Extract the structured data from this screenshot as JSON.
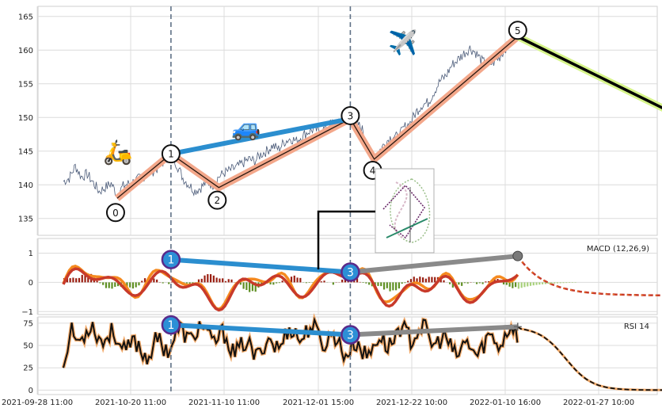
{
  "chart_data": [
    {
      "panel": "price",
      "type": "line",
      "x_ticks": [
        "2021-09-28 11:00",
        "2021-10-20 11:00",
        "2021-11-10 11:00",
        "2021-12-01 15:00",
        "2021-12-22 10:00",
        "2022-01-10 16:00",
        "2022-01-27 10:00"
      ],
      "y_ticks": [
        135,
        140,
        145,
        150,
        155,
        160,
        165
      ],
      "ylim": [
        132.5,
        166.5
      ],
      "grid": true,
      "price_points": [
        [
          0,
          140.5
        ],
        [
          1,
          141.0
        ],
        [
          2,
          142.8
        ],
        [
          3,
          141.2
        ],
        [
          4,
          141.6
        ],
        [
          6,
          139.0
        ],
        [
          8,
          140.2
        ],
        [
          9,
          138.5
        ],
        [
          10,
          139.8
        ],
        [
          12,
          140.6
        ],
        [
          14,
          141.5
        ],
        [
          16,
          142.6
        ],
        [
          17,
          143.8
        ],
        [
          18,
          144.6
        ],
        [
          19,
          143.0
        ],
        [
          20,
          141.0
        ],
        [
          21,
          140.0
        ],
        [
          22,
          139.1
        ],
        [
          23,
          139.6
        ],
        [
          24,
          140.4
        ],
        [
          25,
          140.0
        ],
        [
          26,
          141.2
        ],
        [
          27,
          141.8
        ],
        [
          28,
          142.2
        ],
        [
          29,
          142.6
        ],
        [
          30,
          143.2
        ],
        [
          31,
          143.8
        ],
        [
          32,
          143.5
        ],
        [
          33,
          144.5
        ],
        [
          34,
          145.0
        ],
        [
          35,
          145.8
        ],
        [
          36,
          145.3
        ],
        [
          37,
          146.4
        ],
        [
          38,
          146.9
        ],
        [
          39,
          146.5
        ],
        [
          40,
          147.3
        ],
        [
          41,
          147.9
        ],
        [
          42,
          148.3
        ],
        [
          43,
          147.8
        ],
        [
          44,
          148.6
        ],
        [
          45,
          149.2
        ],
        [
          46,
          149.0
        ],
        [
          47,
          149.8
        ],
        [
          48,
          150.3
        ],
        [
          49,
          149.3
        ],
        [
          50,
          148.2
        ],
        [
          51,
          145.5
        ],
        [
          52,
          144.0
        ],
        [
          53,
          145.2
        ],
        [
          54,
          146.4
        ],
        [
          55,
          147.3
        ],
        [
          56,
          147.0
        ],
        [
          57,
          148.5
        ],
        [
          58,
          149.2
        ],
        [
          59,
          150.8
        ],
        [
          60,
          151.9
        ],
        [
          61,
          152.2
        ],
        [
          62,
          153.8
        ],
        [
          63,
          155.4
        ],
        [
          64,
          156.2
        ],
        [
          65,
          157.8
        ],
        [
          66,
          158.6
        ],
        [
          67,
          159.5
        ],
        [
          68,
          160.3
        ],
        [
          69,
          159.6
        ],
        [
          70,
          158.4
        ],
        [
          71,
          157.8
        ],
        [
          72,
          158.2
        ],
        [
          73,
          159.0
        ],
        [
          74,
          160.4
        ],
        [
          75,
          161.2
        ],
        [
          76,
          162.0
        ]
      ],
      "zigzag_points": [
        [
          9,
          138.0
        ],
        [
          18,
          144.6
        ],
        [
          26,
          139.6
        ],
        [
          48,
          149.8
        ],
        [
          52,
          143.8
        ],
        [
          76,
          162.0
        ]
      ],
      "zigzag_labels": [
        "0",
        "1",
        "2",
        "3",
        "4",
        "5"
      ],
      "projection": {
        "from": [
          76,
          162.0
        ],
        "to": [
          103,
          150.2
        ]
      },
      "trend_line": {
        "from": [
          18,
          144.6
        ],
        "to": [
          48,
          149.8
        ]
      },
      "vertical_markers": [
        18,
        48
      ],
      "icons": [
        "scooter-icon",
        "car-icon",
        "airplane-icon"
      ]
    },
    {
      "panel": "macd",
      "type": "line",
      "label": "MACD (12,26,9)",
      "y_ticks": [
        -1,
        0,
        1
      ],
      "ylim": [
        -1.1,
        1.5
      ],
      "divergence_labels": [
        "1",
        "3"
      ],
      "divergence_line": {
        "from": [
          18,
          0.78
        ],
        "to": [
          48,
          0.35
        ]
      },
      "gray_line": {
        "from": [
          48,
          0.35
        ],
        "to": [
          76,
          0.9
        ]
      }
    },
    {
      "panel": "rsi",
      "type": "line",
      "label": "RSI 14",
      "y_ticks": [
        0,
        25,
        50,
        75
      ],
      "ylim": [
        -5,
        82
      ],
      "divergence_labels": [
        "1",
        "3"
      ],
      "divergence_line": {
        "from": [
          18,
          73.0
        ],
        "to": [
          48,
          62.0
        ]
      },
      "gray_line": {
        "from": [
          48,
          62.0
        ],
        "to": [
          76,
          71.0
        ]
      }
    }
  ],
  "colors": {
    "price_line": "#4a5a78",
    "zigzag_shadow": "#f3a78a",
    "zigzag_line": "#2b1a12",
    "trend_blue": "#2b8ecf",
    "projection_shadow": "#d6f48a",
    "projection_line": "#000000",
    "vline": "#5f7186",
    "macd_orange": "#f58a1f",
    "macd_red": "#c83a2a",
    "hist_red": "#9a1f12",
    "hist_green": "#5f8f23",
    "rsi_black": "#111111",
    "rsi_orange": "#f2aa6a",
    "gray_line": "#8a8a8a",
    "node_fill_blue": "#2c8fd6",
    "node_ring_purple": "#5a2a8a"
  }
}
